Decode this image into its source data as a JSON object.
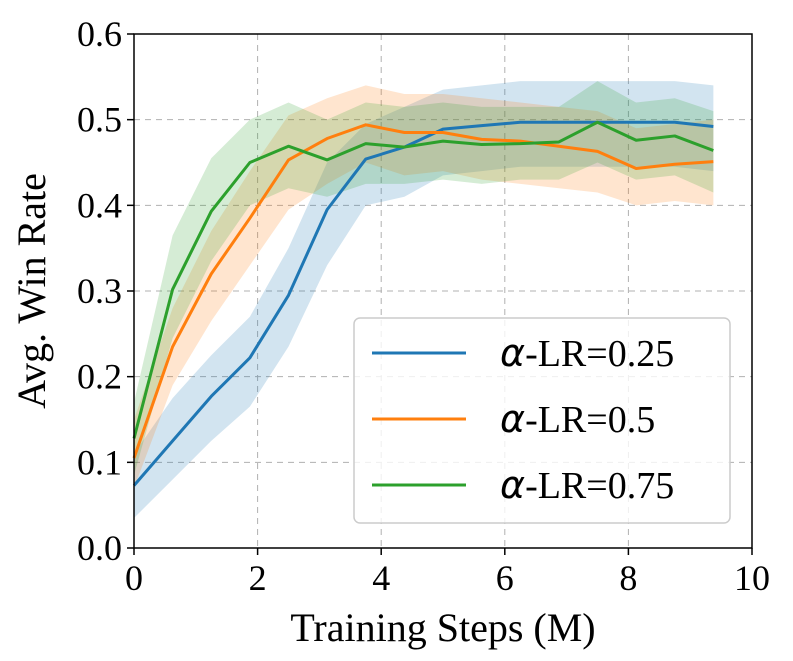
{
  "chart_data": {
    "type": "line",
    "title": "",
    "xlabel": "Training Steps (M)",
    "ylabel": "Avg. Win Rate",
    "xlim": [
      0,
      10
    ],
    "ylim": [
      0.0,
      0.6
    ],
    "xticks": [
      0,
      2,
      4,
      6,
      8,
      10
    ],
    "yticks": [
      0.0,
      0.1,
      0.2,
      0.3,
      0.4,
      0.5,
      0.6
    ],
    "ytick_labels": [
      "0.0",
      "0.1",
      "0.2",
      "0.3",
      "0.4",
      "0.5",
      "0.6"
    ],
    "xtick_labels": [
      "0",
      "2",
      "4",
      "6",
      "8",
      "10"
    ],
    "grid": true,
    "legend_position": "lower-right",
    "x": [
      0,
      0.625,
      1.25,
      1.875,
      2.5,
      3.125,
      3.75,
      4.375,
      5.0,
      5.625,
      6.25,
      6.875,
      7.5,
      8.125,
      8.75,
      9.375
    ],
    "series": [
      {
        "name": "α-LR=0.25",
        "prefix": "α",
        "suffix": "-LR=0.25",
        "color": "#1f77b4",
        "values": [
          0.073,
          0.125,
          0.177,
          0.222,
          0.295,
          0.395,
          0.454,
          0.468,
          0.489,
          0.493,
          0.497,
          0.497,
          0.497,
          0.497,
          0.497,
          0.492
        ],
        "lower": [
          0.035,
          0.08,
          0.125,
          0.165,
          0.235,
          0.33,
          0.4,
          0.41,
          0.435,
          0.44,
          0.445,
          0.445,
          0.445,
          0.445,
          0.445,
          0.44
        ],
        "upper": [
          0.11,
          0.175,
          0.225,
          0.27,
          0.35,
          0.45,
          0.495,
          0.515,
          0.535,
          0.54,
          0.545,
          0.545,
          0.545,
          0.545,
          0.545,
          0.54
        ]
      },
      {
        "name": "α-LR=0.5",
        "prefix": "α",
        "suffix": "-LR=0.5",
        "color": "#ff7f0e",
        "values": [
          0.105,
          0.235,
          0.32,
          0.385,
          0.453,
          0.478,
          0.494,
          0.485,
          0.485,
          0.477,
          0.475,
          0.469,
          0.463,
          0.443,
          0.448,
          0.451
        ],
        "lower": [
          0.07,
          0.19,
          0.265,
          0.33,
          0.395,
          0.425,
          0.45,
          0.435,
          0.44,
          0.43,
          0.425,
          0.42,
          0.415,
          0.4,
          0.405,
          0.4
        ],
        "upper": [
          0.15,
          0.28,
          0.37,
          0.44,
          0.505,
          0.525,
          0.54,
          0.53,
          0.53,
          0.525,
          0.52,
          0.515,
          0.51,
          0.49,
          0.495,
          0.5
        ]
      },
      {
        "name": "α-LR=0.75",
        "prefix": "α",
        "suffix": "-LR=0.75",
        "color": "#2ca02c",
        "values": [
          0.128,
          0.302,
          0.393,
          0.45,
          0.469,
          0.453,
          0.472,
          0.468,
          0.475,
          0.471,
          0.472,
          0.474,
          0.497,
          0.476,
          0.481,
          0.464
        ],
        "lower": [
          0.085,
          0.245,
          0.335,
          0.4,
          0.42,
          0.41,
          0.425,
          0.425,
          0.43,
          0.425,
          0.43,
          0.43,
          0.45,
          0.43,
          0.435,
          0.415
        ],
        "upper": [
          0.17,
          0.365,
          0.455,
          0.5,
          0.52,
          0.5,
          0.52,
          0.515,
          0.52,
          0.515,
          0.515,
          0.515,
          0.545,
          0.52,
          0.525,
          0.51
        ]
      }
    ]
  }
}
